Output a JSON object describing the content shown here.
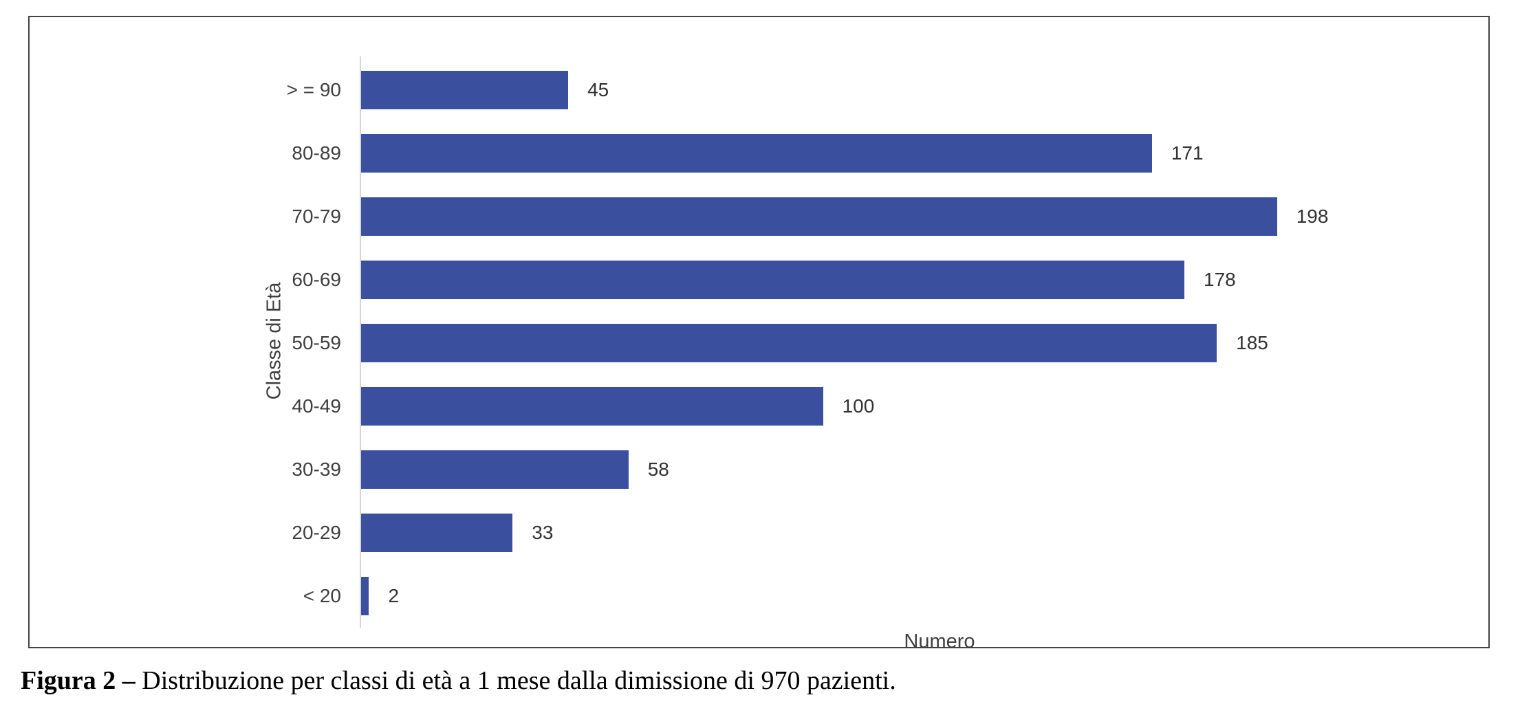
{
  "chart_data": {
    "type": "bar",
    "orientation": "horizontal",
    "title": "",
    "categories": [
      "> = 90",
      "80-89",
      "70-79",
      "60-69",
      "50-59",
      "40-49",
      "30-39",
      "20-29",
      "< 20"
    ],
    "values": [
      45,
      171,
      198,
      178,
      185,
      100,
      58,
      33,
      2
    ],
    "xlabel": "Numero",
    "ylabel": "Classe di Età",
    "xlim": [
      0,
      250
    ],
    "grid": false,
    "data_labels": true,
    "legend": false
  },
  "caption": {
    "label": "Figura 2 –",
    "text": " Distribuzione per classi di età a 1 mese dalla dimissione di 970 pazienti."
  },
  "colors": {
    "bar": "#3B4F9F",
    "axis_line": "#D6D6D6",
    "frame_border": "#434343",
    "text": "#3F3F3F"
  }
}
